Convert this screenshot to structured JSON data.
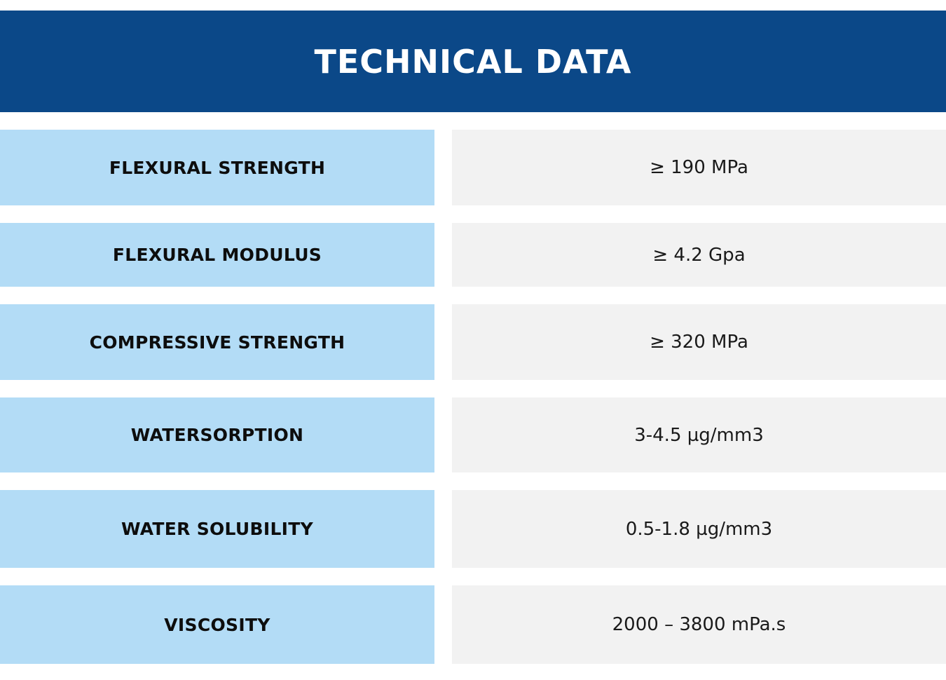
{
  "title": "TECHNICAL DATA",
  "colors": {
    "header_bg": "#0b4888",
    "label_bg": "#b3dcf6",
    "value_bg": "#f2f2f2"
  },
  "rows": [
    {
      "label": "FLEXURAL STRENGTH",
      "value": "≥ 190 MPa"
    },
    {
      "label": "FLEXURAL MODULUS",
      "value": "≥ 4.2 Gpa"
    },
    {
      "label": "COMPRESSIVE STRENGTH",
      "value": "≥ 320 MPa"
    },
    {
      "label": "WATERSORPTION",
      "value": "3-4.5 µg/mm3"
    },
    {
      "label": "WATER SOLUBILITY",
      "value": "0.5-1.8 µg/mm3"
    },
    {
      "label": "VISCOSITY",
      "value": "2000 – 3800 mPa.s"
    }
  ]
}
